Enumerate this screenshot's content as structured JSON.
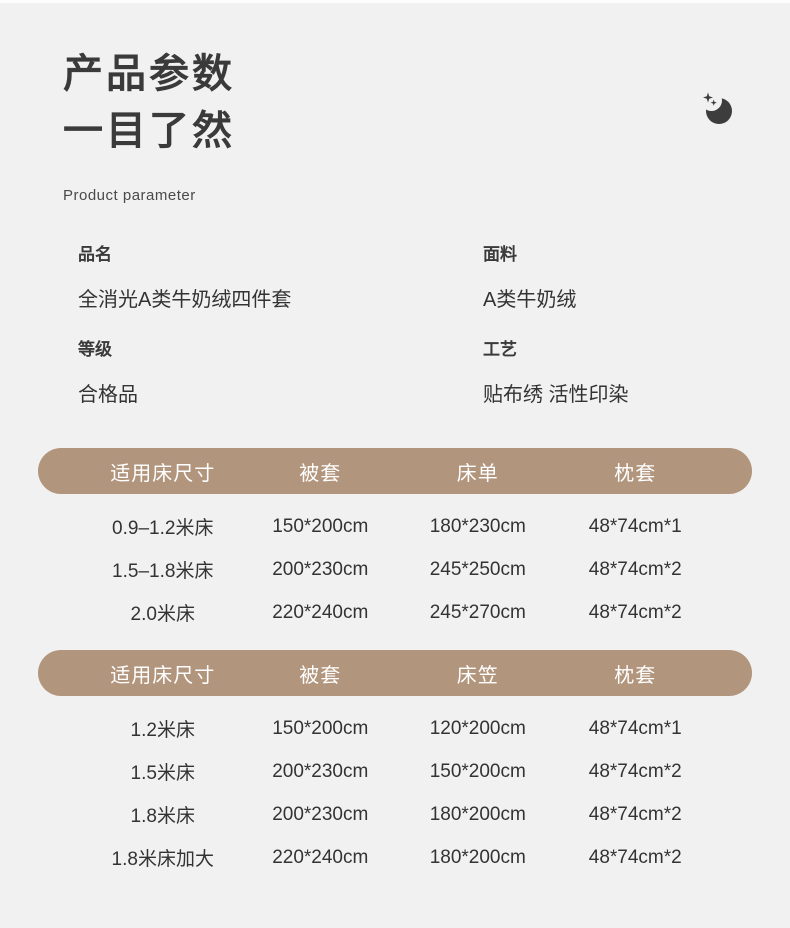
{
  "colors": {
    "background": "#f1f1f1",
    "accent_brown": "#b2957d",
    "title_text": "#3a3a3a",
    "table_header_text": "#ffffff",
    "body_text": "#333333"
  },
  "header": {
    "title_line1": "产品参数",
    "title_line2": "一目了然",
    "subtitle": "Product parameter",
    "moon_icon": "crescent-moon-with-stars-icon"
  },
  "specs": [
    {
      "label": "品名",
      "value": "全消光A类牛奶绒四件套"
    },
    {
      "label": "面料",
      "value": "A类牛奶绒"
    },
    {
      "label": "等级",
      "value": "合格品"
    },
    {
      "label": "工艺",
      "value": "贴布绣 活性印染"
    }
  ],
  "tables": [
    {
      "headers": [
        "适用床尺寸",
        "被套",
        "床单",
        "枕套"
      ],
      "rows": [
        [
          "0.9–1.2米床",
          "150*200cm",
          "180*230cm",
          "48*74cm*1"
        ],
        [
          "1.5–1.8米床",
          "200*230cm",
          "245*250cm",
          "48*74cm*2"
        ],
        [
          "2.0米床",
          "220*240cm",
          "245*270cm",
          "48*74cm*2"
        ]
      ]
    },
    {
      "headers": [
        "适用床尺寸",
        "被套",
        "床笠",
        "枕套"
      ],
      "rows": [
        [
          "1.2米床",
          "150*200cm",
          "120*200cm",
          "48*74cm*1"
        ],
        [
          "1.5米床",
          "200*230cm",
          "150*200cm",
          "48*74cm*2"
        ],
        [
          "1.8米床",
          "200*230cm",
          "180*200cm",
          "48*74cm*2"
        ],
        [
          "1.8米床加大",
          "220*240cm",
          "180*200cm",
          "48*74cm*2"
        ]
      ]
    }
  ]
}
